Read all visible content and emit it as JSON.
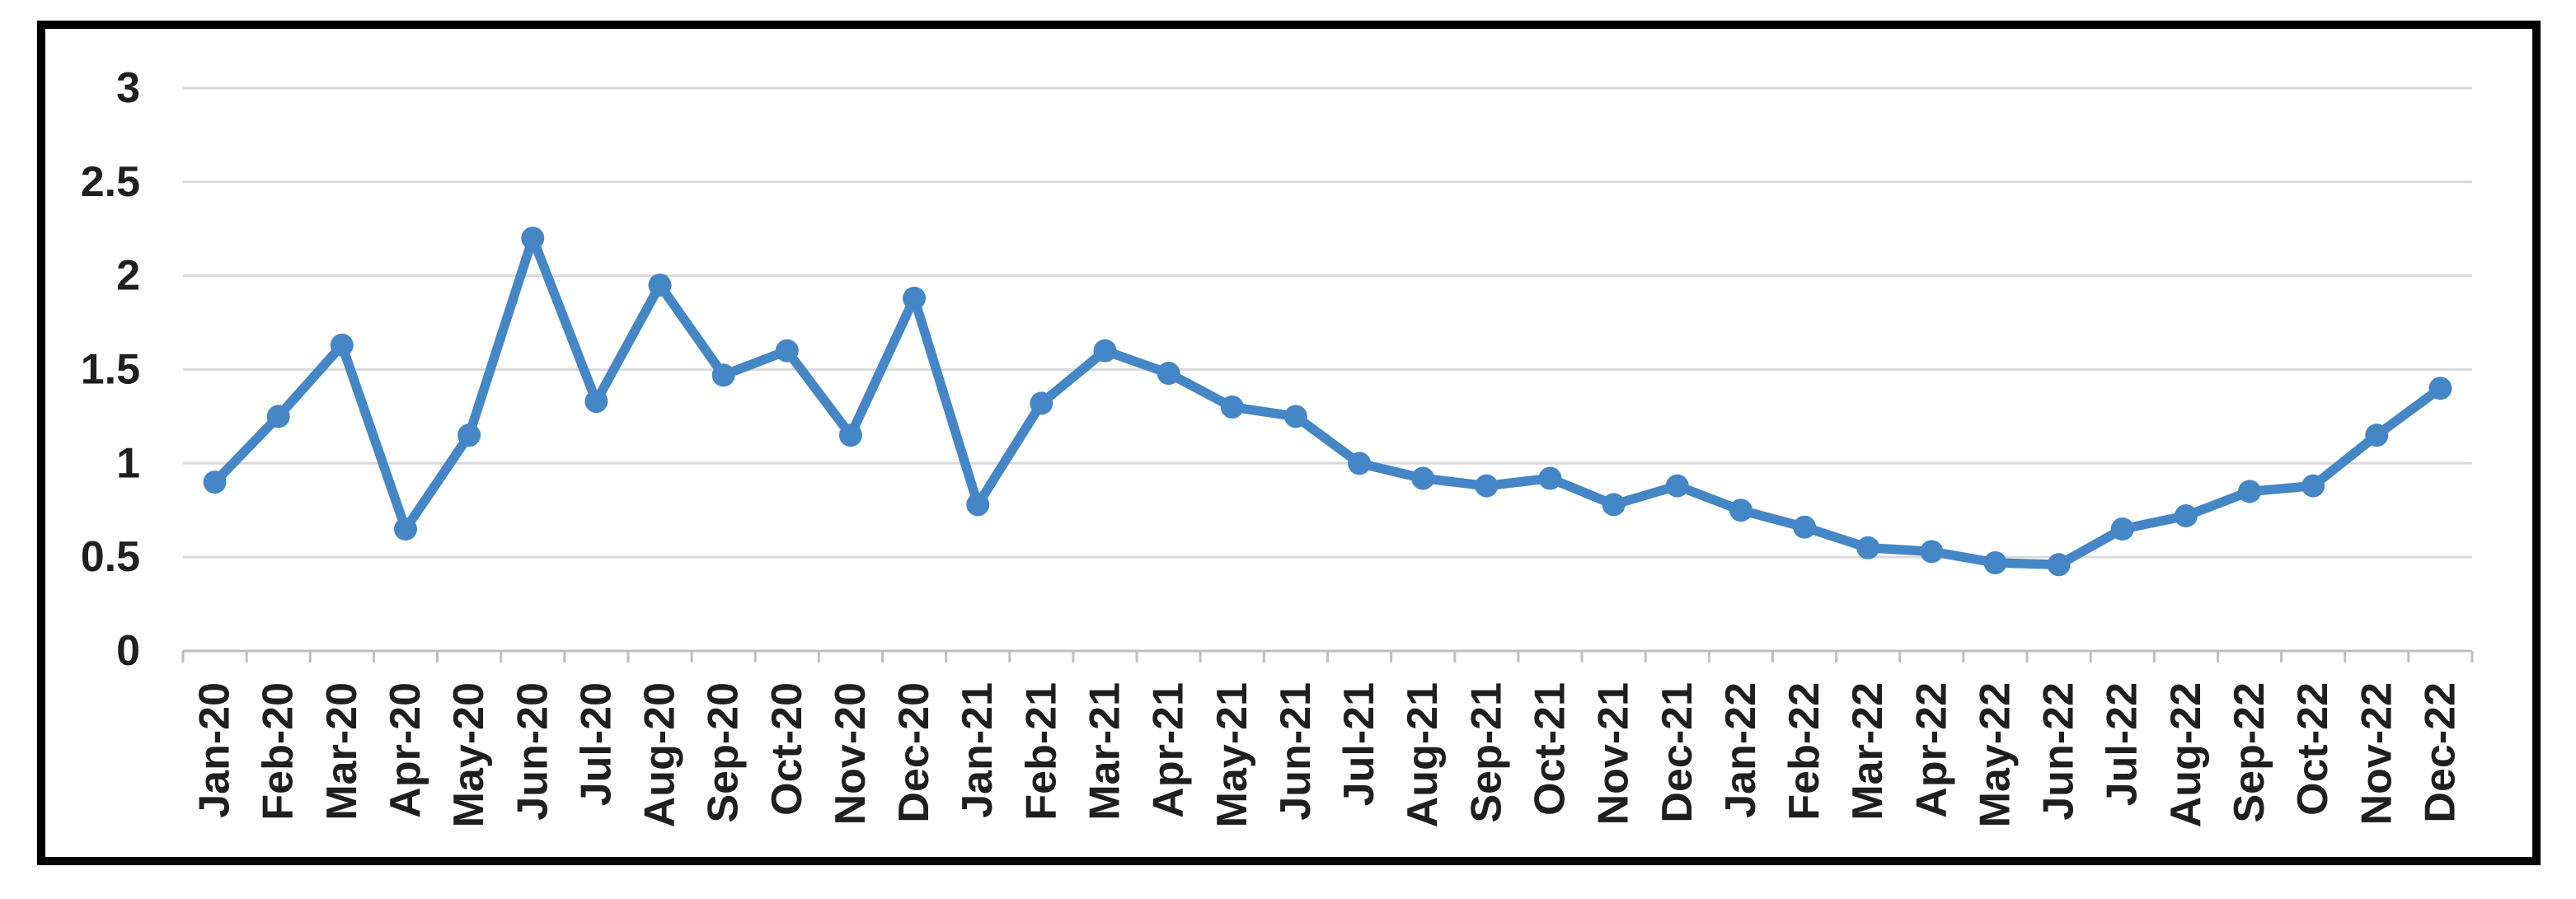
{
  "chart_data": {
    "type": "line",
    "title": "",
    "xlabel": "",
    "ylabel": "",
    "legend": "none",
    "grid": "horizontal",
    "marker": "circle",
    "ylim": [
      0,
      3
    ],
    "ytick_step": 0.5,
    "ytick_labels": [
      "0",
      "0.5",
      "1",
      "1.5",
      "2",
      "2.5",
      "3"
    ],
    "categories": [
      "Jan-20",
      "Feb-20",
      "Mar-20",
      "Apr-20",
      "May-20",
      "Jun-20",
      "Jul-20",
      "Aug-20",
      "Sep-20",
      "Oct-20",
      "Nov-20",
      "Dec-20",
      "Jan-21",
      "Feb-21",
      "Mar-21",
      "Apr-21",
      "May-21",
      "Jun-21",
      "Jul-21",
      "Aug-21",
      "Sep-21",
      "Oct-21",
      "Nov-21",
      "Dec-21",
      "Jan-22",
      "Feb-22",
      "Mar-22",
      "Apr-22",
      "May-22",
      "Jun-22",
      "Jul-22",
      "Aug-22",
      "Sep-22",
      "Oct-22",
      "Nov-22",
      "Dec-22"
    ],
    "series": [
      {
        "name": "",
        "values": [
          0.9,
          1.25,
          1.63,
          0.65,
          1.15,
          2.2,
          1.33,
          1.95,
          1.47,
          1.6,
          1.15,
          1.88,
          0.78,
          1.32,
          1.6,
          1.48,
          1.3,
          1.25,
          1.0,
          0.92,
          0.88,
          0.92,
          0.78,
          0.88,
          0.75,
          0.66,
          0.55,
          0.53,
          0.47,
          0.46,
          0.65,
          0.72,
          0.85,
          0.88,
          1.15,
          1.4
        ]
      }
    ]
  },
  "colors": {
    "line": "#4586c6",
    "marker": "#4586c6",
    "gridline": "#d9d9d9",
    "axis_line": "#bfbfbf",
    "tick_mark": "#bfbfbf",
    "tick_label": "#1f1f1f",
    "frame_border": "#000000",
    "background": "#ffffff"
  }
}
